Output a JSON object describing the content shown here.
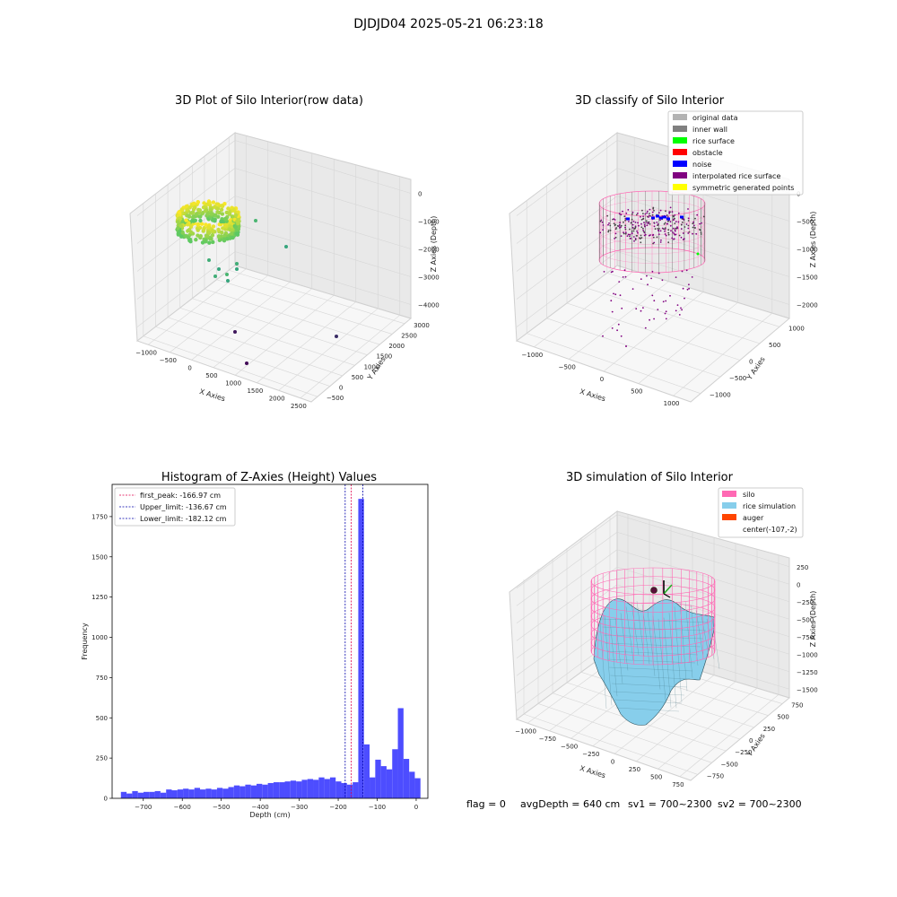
{
  "suptitle": "DJDJD04 2025-05-21 06:23:18",
  "footer": {
    "flag": "flag = 0",
    "avg": "avgDepth = 640 cm",
    "sv1": "sv1 = 700~2300",
    "sv2": "sv2 = 700~2300"
  },
  "chart_data": [
    {
      "type": "scatter",
      "projection": "3d",
      "title": "3D Plot of Silo Interior(row data)",
      "xlabel": "X Axies",
      "ylabel": "Y Axies",
      "zlabel": "Z Axies (Depth)",
      "xticks": [
        "−1000",
        "−500",
        "0",
        "500",
        "1000",
        "1500",
        "2000",
        "2500"
      ],
      "yticks": [
        "−500",
        "0",
        "500",
        "1000",
        "1500",
        "2000",
        "2500",
        "3000"
      ],
      "zticks": [
        "0",
        "−1000",
        "−2000",
        "−3000",
        "−4000"
      ],
      "xlim": [
        -1200,
        2700
      ],
      "ylim": [
        -700,
        3100
      ],
      "zlim": [
        -4500,
        200
      ],
      "colormap": [
        "#440154",
        "#21918c",
        "#5ec962",
        "#fde725"
      ],
      "outliers": [
        {
          "x": 1300,
          "y": 1500,
          "z": -3500,
          "c": 0.1
        },
        {
          "x": 1900,
          "y": 700,
          "z": -3600,
          "c": 0.15
        },
        {
          "x": 1600,
          "y": 1600,
          "z": -4200,
          "c": 0.05
        },
        {
          "x": 200,
          "y": 800,
          "z": -1500,
          "c": 0.6
        },
        {
          "x": 300,
          "y": 1100,
          "z": -1700,
          "c": 0.55
        },
        {
          "x": 600,
          "y": 1200,
          "z": -1800,
          "c": 0.5
        },
        {
          "x": 900,
          "y": 600,
          "z": -1000,
          "c": 0.6
        },
        {
          "x": 1100,
          "y": 900,
          "z": -800,
          "c": 0.7
        }
      ]
    },
    {
      "type": "scatter",
      "projection": "3d",
      "title": "3D classify of Silo Interior",
      "xlabel": "X Axies",
      "ylabel": "Y Axies",
      "zlabel": "Z Axies (Depth)",
      "xticks": [
        "−1000",
        "−500",
        "0",
        "500",
        "1000"
      ],
      "yticks": [
        "−1000",
        "−500",
        "0",
        "500",
        "1000"
      ],
      "zticks": [
        "0",
        "−500",
        "−1000",
        "−1500",
        "−2000"
      ],
      "legend_position": "top-right",
      "legend": [
        {
          "label": "original data",
          "color": "#b3b3b3"
        },
        {
          "label": "inner wall",
          "color": "#808080"
        },
        {
          "label": "rice surface",
          "color": "#00ff00"
        },
        {
          "label": "obstacle",
          "color": "#ff0000"
        },
        {
          "label": "noise",
          "color": "#0000ff"
        },
        {
          "label": "interpolated rice surface",
          "color": "#800080"
        },
        {
          "label": "symmetric generated points",
          "color": "#ffff00"
        }
      ],
      "cylinder_color": "#ff69b4"
    },
    {
      "type": "bar",
      "title": "Histogram of Z-Axies (Height) Values",
      "xlabel": "Depth (cm)",
      "ylabel": "Frequency",
      "xlim": [
        -780,
        30
      ],
      "ylim": [
        0,
        1950
      ],
      "xticks": [
        -700,
        -600,
        -500,
        -400,
        -300,
        -200,
        -100,
        0
      ],
      "yticks": [
        0,
        250,
        500,
        750,
        1000,
        1250,
        1500,
        1750
      ],
      "bar_color": "#4d4dff",
      "bin_start": -757.5,
      "bin_width": 14.5,
      "values": [
        40,
        30,
        45,
        35,
        40,
        40,
        45,
        35,
        55,
        50,
        55,
        60,
        55,
        65,
        55,
        60,
        55,
        65,
        60,
        70,
        80,
        75,
        85,
        80,
        90,
        85,
        95,
        100,
        100,
        105,
        110,
        105,
        115,
        120,
        115,
        130,
        120,
        130,
        105,
        95,
        85,
        100,
        1860,
        335,
        130,
        240,
        200,
        180,
        305,
        560,
        245,
        165,
        125
      ],
      "lines": [
        {
          "label": "first_peak: -166.97 cm",
          "x": -166.97,
          "color": "#e0004c"
        },
        {
          "label": "Upper_limit: -136.67 cm",
          "x": -136.67,
          "color": "#0000aa"
        },
        {
          "label": "Lower_limit: -182.12 cm",
          "x": -182.12,
          "color": "#0000aa"
        }
      ],
      "legend_position": "top-left"
    },
    {
      "type": "surface",
      "projection": "3d",
      "title": "3D simulation of Silo Interior",
      "xlabel": "X Axies",
      "ylabel": "Y Axies",
      "zlabel": "Z Axies (Depth)",
      "xticks": [
        "−1000",
        "−750",
        "−500",
        "−250",
        "0",
        "250",
        "500",
        "750"
      ],
      "yticks": [
        "−750",
        "−500",
        "−250",
        "0",
        "250",
        "500",
        "750"
      ],
      "zticks": [
        "250",
        "0",
        "−250",
        "−500",
        "−750",
        "−1000",
        "−1250",
        "−1500"
      ],
      "legend_position": "top-right",
      "legend": [
        {
          "label": "silo",
          "color": "#ff69b4"
        },
        {
          "label": "rice simulation",
          "color": "#87ceeb"
        },
        {
          "label": "auger",
          "color": "#ff4500"
        },
        {
          "label": "center(-107,-2)",
          "color": ""
        }
      ],
      "center": {
        "x": -107,
        "y": -2
      }
    }
  ]
}
